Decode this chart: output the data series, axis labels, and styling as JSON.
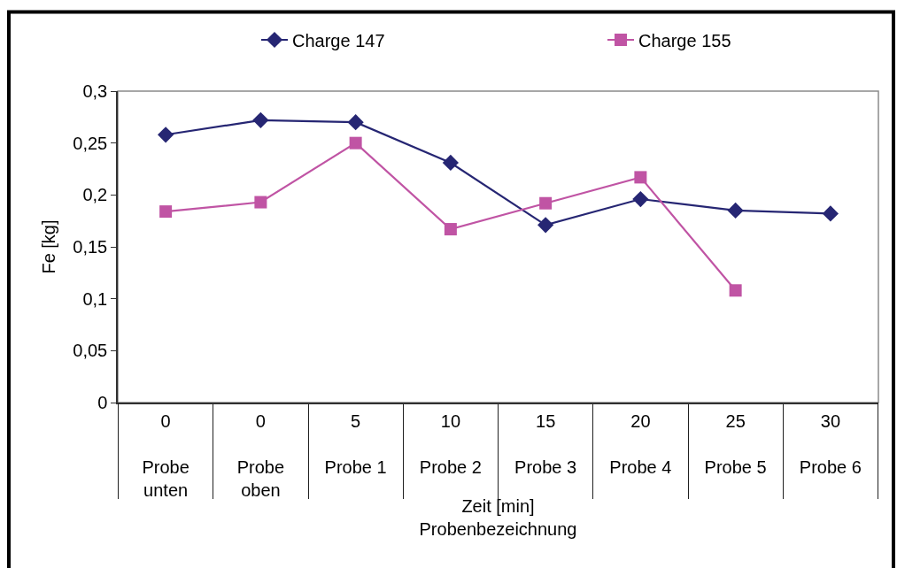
{
  "chart_data": {
    "type": "line",
    "xlabel": "Zeit [min]\nProbenbezeichnung",
    "ylabel": "Fe [kg]",
    "categories": [
      "0\nProbe unten",
      "0\nProbe oben",
      "5\nProbe 1",
      "10\nProbe 2",
      "15\nProbe 3",
      "20\nProbe 4",
      "25\nProbe 5",
      "30\nProbe 6"
    ],
    "series": [
      {
        "name": "Charge 147",
        "color": "#262673",
        "marker": "diamond",
        "values": [
          0.258,
          0.272,
          0.27,
          0.231,
          0.171,
          0.196,
          0.185,
          0.182
        ]
      },
      {
        "name": "Charge 155",
        "color": "#c054a4",
        "marker": "square",
        "values": [
          0.184,
          0.193,
          0.25,
          0.167,
          0.192,
          0.217,
          0.108,
          null
        ]
      }
    ],
    "ylim": [
      0,
      0.3
    ],
    "yticks": [
      0,
      {
        "value": 0.05,
        "label": "0,05"
      },
      {
        "value": 0.1,
        "label": "0,1"
      },
      {
        "value": 0.15,
        "label": "0,15"
      },
      {
        "value": 0.2,
        "label": "0,2"
      },
      {
        "value": 0.25,
        "label": "0,25"
      },
      {
        "value": 0.3,
        "label": "0,3"
      }
    ],
    "grid": false,
    "legend": "top",
    "line_style": "solid"
  }
}
